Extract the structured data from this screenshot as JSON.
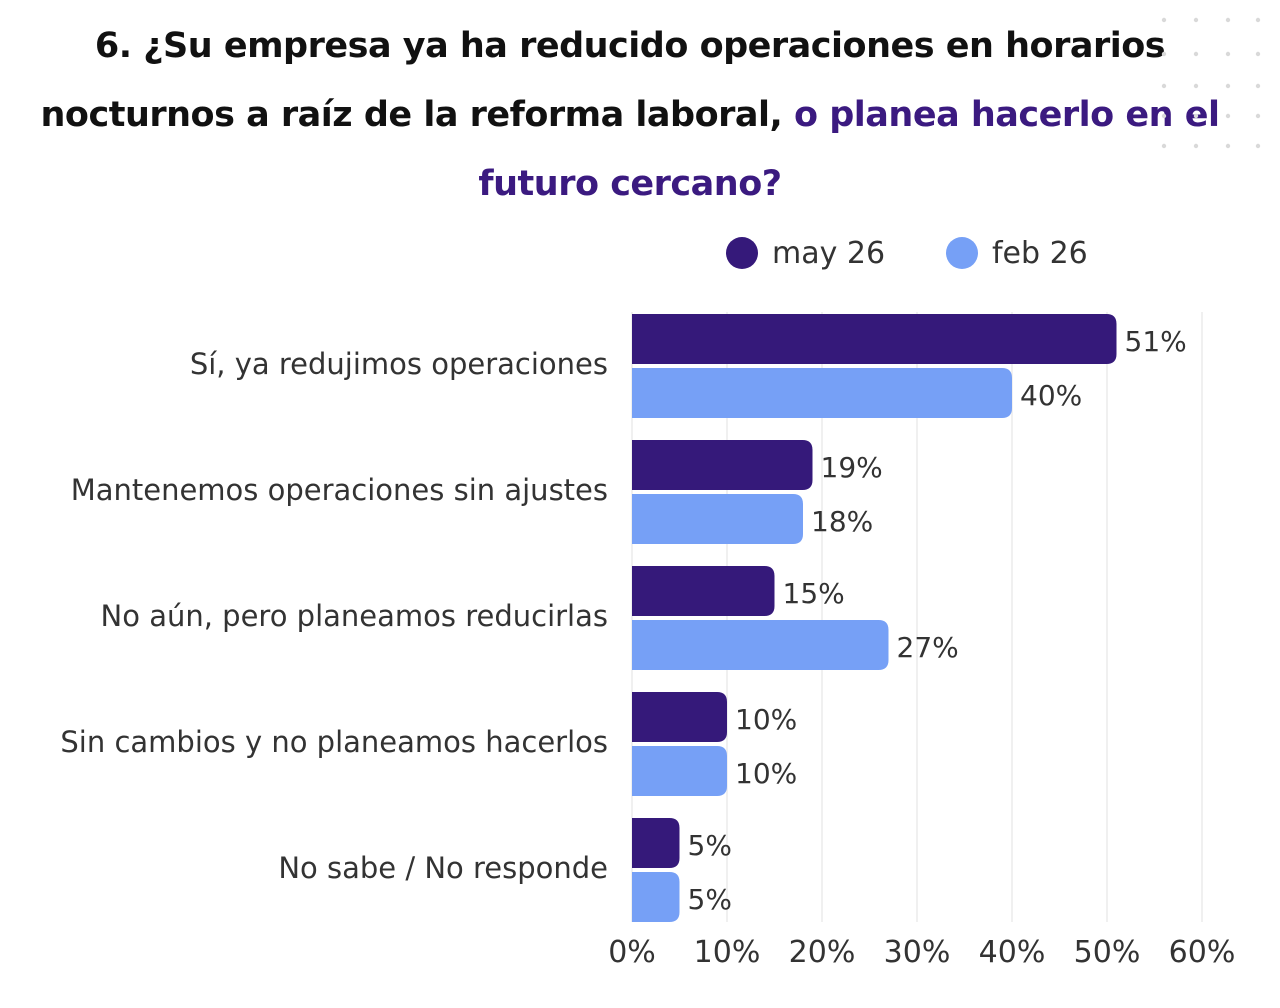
{
  "title": {
    "part1": "6. ¿Su empresa ya ha reducido operaciones en horarios nocturnos a raíz de la reforma laboral, ",
    "part2": "o planea hacerlo en el futuro cercano?"
  },
  "colors": {
    "title_highlight": "#3b1a80",
    "series_may": "#35197a",
    "series_feb": "#76a0f6",
    "grid": "#e6e6e6"
  },
  "chart_data": {
    "type": "bar",
    "orientation": "horizontal",
    "categories": [
      "Sí, ya redujimos operaciones",
      "Mantenemos operaciones sin ajustes",
      "No aún, pero planeamos reducirlas",
      "Sin cambios y no planeamos hacerlos",
      "No sabe / No responde"
    ],
    "series": [
      {
        "name": "may 26",
        "values": [
          51,
          19,
          15,
          10,
          5
        ],
        "labels": [
          "51%",
          "19%",
          "15%",
          "10%",
          "5%"
        ]
      },
      {
        "name": "feb 26",
        "values": [
          40,
          18,
          27,
          10,
          5
        ],
        "labels": [
          "40%",
          "18%",
          "27%",
          "10%",
          "5%"
        ]
      }
    ],
    "xlim": [
      0,
      60
    ],
    "xticks": [
      "0%",
      "10%",
      "20%",
      "30%",
      "40%",
      "50%",
      "60%"
    ],
    "grid": true,
    "legend": "top"
  }
}
